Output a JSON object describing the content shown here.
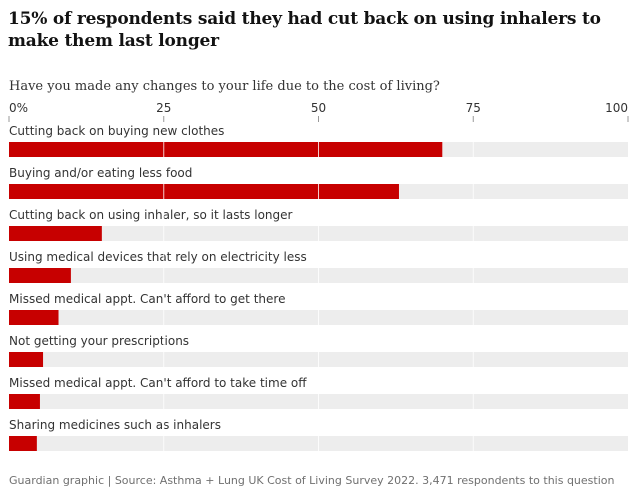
{
  "headline": "15% of respondents said they had cut back on using inhalers to make them last longer",
  "source": "Guardian graphic | Source: Asthma + Lung UK Cost of Living Survey 2022. 3,471 respondents to this question",
  "chart_data": {
    "type": "bar",
    "orientation": "horizontal",
    "title": "Have you made any changes to your life due to the cost of living?",
    "xlabel": "",
    "ylabel": "",
    "xlim": [
      0,
      100
    ],
    "ticks": [
      0,
      25,
      50,
      75,
      100
    ],
    "tick_labels": [
      "0%",
      "25",
      "50",
      "75",
      "100"
    ],
    "categories": [
      "Cutting back on buying new clothes",
      "Buying and/or eating less food",
      "Cutting back on using inhaler, so it lasts longer",
      "Using medical devices that rely on electricity less",
      "Missed medical appt. Can't afford to get there",
      "Not getting your prescriptions",
      "Missed medical appt. Can't afford to take time off",
      "Sharing medicines such as inhalers"
    ],
    "values": [
      70,
      63,
      15,
      10,
      8,
      5.5,
      5,
      4.5
    ],
    "colors": {
      "bar": "#c70000",
      "track": "#ededed",
      "grid": "#ffffff"
    }
  }
}
